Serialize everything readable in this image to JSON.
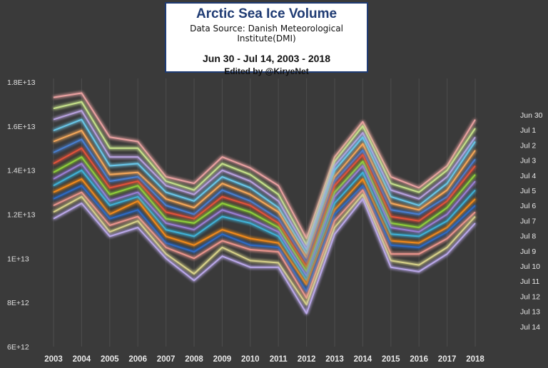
{
  "chart_data": {
    "type": "line",
    "title": "Arctic Sea Ice Volume",
    "source": "Data Source: Danish Meteorological Institute(DMI)",
    "subtitle": "Jun 30 - Jul 14, 2003 - 2018",
    "credit": "Edited by @KiryeNet",
    "categories": [
      "2003",
      "2004",
      "2005",
      "2006",
      "2007",
      "2008",
      "2009",
      "2010",
      "2011",
      "2012",
      "2013",
      "2014",
      "2015",
      "2016",
      "2017",
      "2018"
    ],
    "ylim": [
      6000000000000.0,
      18000000000000.0
    ],
    "yticks": [
      6000000000000.0,
      8000000000000.0,
      10000000000000.0,
      12000000000000.0,
      14000000000000.0,
      16000000000000.0,
      18000000000000.0
    ],
    "ytick_labels": [
      "6E+12",
      "8E+12",
      "1E+13",
      "1.2E+13",
      "1.4E+13",
      "1.6E+13",
      "1.8E+13"
    ],
    "grid": "vertical",
    "legend": "right",
    "series": [
      {
        "name": "Jun 30",
        "color": "#e8a0a0",
        "values": [
          17300000000000.0,
          17500000000000.0,
          15500000000000.0,
          15300000000000.0,
          13700000000000.0,
          13400000000000.0,
          14600000000000.0,
          14100000000000.0,
          13300000000000.0,
          10900000000000.0,
          14600000000000.0,
          16200000000000.0,
          13700000000000.0,
          13200000000000.0,
          14200000000000.0,
          16300000000000.0
        ]
      },
      {
        "name": "Jul 1",
        "color": "#c5e08a",
        "values": [
          16800000000000.0,
          17100000000000.0,
          15000000000000.0,
          15000000000000.0,
          13500000000000.0,
          13100000000000.0,
          14300000000000.0,
          13800000000000.0,
          12900000000000.0,
          10600000000000.0,
          14400000000000.0,
          16000000000000.0,
          13400000000000.0,
          13000000000000.0,
          14000000000000.0,
          15900000000000.0
        ]
      },
      {
        "name": "Jul 2",
        "color": "#b7a1de",
        "values": [
          16300000000000.0,
          16700000000000.0,
          14600000000000.0,
          14600000000000.0,
          13300000000000.0,
          12900000000000.0,
          14000000000000.0,
          13500000000000.0,
          12600000000000.0,
          10400000000000.0,
          14200000000000.0,
          15700000000000.0,
          13100000000000.0,
          12700000000000.0,
          13700000000000.0,
          15500000000000.0
        ]
      },
      {
        "name": "Jul 3",
        "color": "#69c6e8",
        "values": [
          15800000000000.0,
          16300000000000.0,
          14200000000000.0,
          14300000000000.0,
          13000000000000.0,
          12600000000000.0,
          13700000000000.0,
          13200000000000.0,
          12300000000000.0,
          10200000000000.0,
          14000000000000.0,
          15500000000000.0,
          12800000000000.0,
          12400000000000.0,
          13400000000000.0,
          15300000000000.0
        ]
      },
      {
        "name": "Jul 4",
        "color": "#f4a75a",
        "values": [
          15300000000000.0,
          15800000000000.0,
          13800000000000.0,
          13900000000000.0,
          12700000000000.0,
          12300000000000.0,
          13400000000000.0,
          12900000000000.0,
          12100000000000.0,
          10000000000000.0,
          13700000000000.0,
          15200000000000.0,
          12500000000000.0,
          12200000000000.0,
          13100000000000.0,
          14900000000000.0
        ]
      },
      {
        "name": "Jul 5",
        "color": "#4a7fd0",
        "values": [
          14800000000000.0,
          15400000000000.0,
          13500000000000.0,
          13700000000000.0,
          12400000000000.0,
          12000000000000.0,
          13100000000000.0,
          12600000000000.0,
          11800000000000.0,
          9800000000000.0,
          13500000000000.0,
          14900000000000.0,
          12200000000000.0,
          12000000000000.0,
          12800000000000.0,
          14500000000000.0
        ]
      },
      {
        "name": "Jul 6",
        "color": "#e0533a",
        "values": [
          14300000000000.0,
          15000000000000.0,
          13200000000000.0,
          13500000000000.0,
          12100000000000.0,
          11800000000000.0,
          12800000000000.0,
          12400000000000.0,
          11600000000000.0,
          9600000000000.0,
          13300000000000.0,
          14700000000000.0,
          11900000000000.0,
          11700000000000.0,
          12600000000000.0,
          14200000000000.0
        ]
      },
      {
        "name": "Jul 7",
        "color": "#8fce3a",
        "values": [
          13900000000000.0,
          14600000000000.0,
          12900000000000.0,
          13300000000000.0,
          11800000000000.0,
          11600000000000.0,
          12500000000000.0,
          12100000000000.0,
          11400000000000.0,
          9400000000000.0,
          13000000000000.0,
          14400000000000.0,
          11600000000000.0,
          11400000000000.0,
          12300000000000.0,
          13800000000000.0
        ]
      },
      {
        "name": "Jul 8",
        "color": "#9a7fd4",
        "values": [
          13600000000000.0,
          14300000000000.0,
          12600000000000.0,
          13000000000000.0,
          11600000000000.0,
          11300000000000.0,
          12200000000000.0,
          11800000000000.0,
          11200000000000.0,
          9200000000000.0,
          12800000000000.0,
          14200000000000.0,
          11400000000000.0,
          11200000000000.0,
          12000000000000.0,
          13500000000000.0
        ]
      },
      {
        "name": "Jul 9",
        "color": "#3fb1d6",
        "values": [
          13300000000000.0,
          14000000000000.0,
          12400000000000.0,
          12800000000000.0,
          11300000000000.0,
          11000000000000.0,
          11900000000000.0,
          11600000000000.0,
          11000000000000.0,
          9000000000000.0,
          12500000000000.0,
          13900000000000.0,
          11100000000000.0,
          11000000000000.0,
          11700000000000.0,
          13100000000000.0
        ]
      },
      {
        "name": "Jul 10",
        "color": "#f08a1c",
        "values": [
          13000000000000.0,
          13600000000000.0,
          12000000000000.0,
          12600000000000.0,
          11000000000000.0,
          10600000000000.0,
          11300000000000.0,
          10900000000000.0,
          10700000000000.0,
          8800000000000.0,
          12200000000000.0,
          13600000000000.0,
          10800000000000.0,
          10700000000000.0,
          11400000000000.0,
          12700000000000.0
        ]
      },
      {
        "name": "Jul 11",
        "color": "#2d6bc4",
        "values": [
          12700000000000.0,
          13300000000000.0,
          11800000000000.0,
          12200000000000.0,
          10700000000000.0,
          10300000000000.0,
          11100000000000.0,
          10600000000000.0,
          10500000000000.0,
          8500000000000.0,
          12000000000000.0,
          13300000000000.0,
          10600000000000.0,
          10500000000000.0,
          11200000000000.0,
          12400000000000.0
        ]
      },
      {
        "name": "Jul 12",
        "color": "#e8948c",
        "values": [
          12400000000000.0,
          13000000000000.0,
          11500000000000.0,
          11900000000000.0,
          10500000000000.0,
          10000000000000.0,
          10800000000000.0,
          10400000000000.0,
          10300000000000.0,
          8200000000000.0,
          11700000000000.0,
          13100000000000.0,
          10200000000000.0,
          10200000000000.0,
          10900000000000.0,
          12100000000000.0
        ]
      },
      {
        "name": "Jul 13",
        "color": "#d6d089",
        "values": [
          12100000000000.0,
          12800000000000.0,
          11200000000000.0,
          11700000000000.0,
          10200000000000.0,
          9300000000000.0,
          10500000000000.0,
          9900000000000.0,
          9800000000000.0,
          7900000000000.0,
          11400000000000.0,
          12900000000000.0,
          9900000000000.0,
          9700000000000.0,
          10500000000000.0,
          11900000000000.0
        ]
      },
      {
        "name": "Jul 14",
        "color": "#b9a7e8",
        "values": [
          11800000000000.0,
          12500000000000.0,
          11000000000000.0,
          11400000000000.0,
          10000000000000.0,
          9000000000000.0,
          10100000000000.0,
          9600000000000.0,
          9600000000000.0,
          7500000000000.0,
          11100000000000.0,
          12700000000000.0,
          9600000000000.0,
          9400000000000.0,
          10200000000000.0,
          11600000000000.0
        ]
      }
    ]
  }
}
